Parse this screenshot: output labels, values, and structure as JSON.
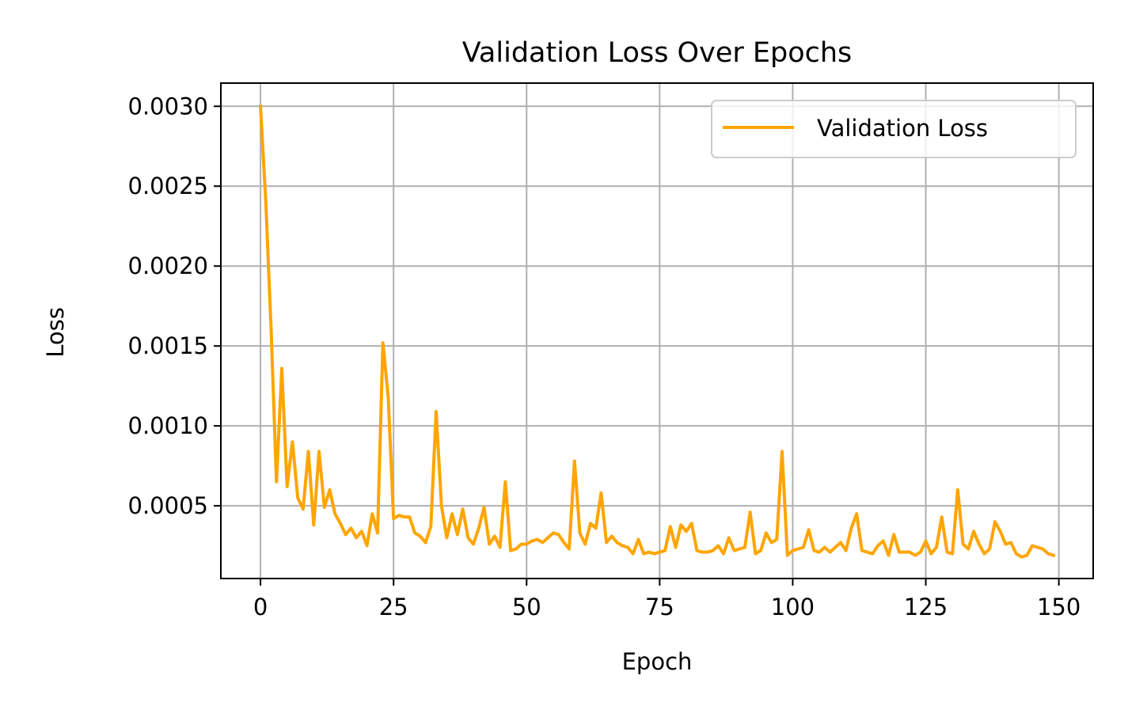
{
  "colors": {
    "series": "#FFA500",
    "grid": "#b0b0b0",
    "axis": "#000000",
    "background": "#ffffff",
    "legend_border": "#cccccc"
  },
  "chart_data": {
    "type": "line",
    "title": "Validation Loss Over Epochs",
    "xlabel": "Epoch",
    "ylabel": "Loss",
    "xlim": [
      -7.45,
      156.45
    ],
    "ylim": [
      4.5e-05,
      0.003145
    ],
    "xticks": [
      0,
      25,
      50,
      75,
      100,
      125,
      150
    ],
    "xtick_labels": [
      "0",
      "25",
      "50",
      "75",
      "100",
      "125",
      "150"
    ],
    "yticks": [
      0.0005,
      0.001,
      0.0015,
      0.002,
      0.0025,
      0.003
    ],
    "ytick_labels": [
      "0.0005",
      "0.0010",
      "0.0015",
      "0.0020",
      "0.0025",
      "0.0030"
    ],
    "grid": true,
    "legend_position": "upper right",
    "series": [
      {
        "name": "Validation Loss",
        "color": "#FFA500",
        "x": [
          0,
          1,
          2,
          3,
          4,
          5,
          6,
          7,
          8,
          9,
          10,
          11,
          12,
          13,
          14,
          15,
          16,
          17,
          18,
          19,
          20,
          21,
          22,
          23,
          24,
          25,
          26,
          27,
          28,
          29,
          30,
          31,
          32,
          33,
          34,
          35,
          36,
          37,
          38,
          39,
          40,
          41,
          42,
          43,
          44,
          45,
          46,
          47,
          48,
          49,
          50,
          51,
          52,
          53,
          54,
          55,
          56,
          57,
          58,
          59,
          60,
          61,
          62,
          63,
          64,
          65,
          66,
          67,
          68,
          69,
          70,
          71,
          72,
          73,
          74,
          75,
          76,
          77,
          78,
          79,
          80,
          81,
          82,
          83,
          84,
          85,
          86,
          87,
          88,
          89,
          90,
          91,
          92,
          93,
          94,
          95,
          96,
          97,
          98,
          99,
          100,
          101,
          102,
          103,
          104,
          105,
          106,
          107,
          108,
          109,
          110,
          111,
          112,
          113,
          114,
          115,
          116,
          117,
          118,
          119,
          120,
          121,
          122,
          123,
          124,
          125,
          126,
          127,
          128,
          129,
          130,
          131,
          132,
          133,
          134,
          135,
          136,
          137,
          138,
          139,
          140,
          141,
          142,
          143,
          144,
          145,
          146,
          147,
          148,
          149
        ],
        "values": [
          0.003,
          0.0024,
          0.0016,
          0.00065,
          0.00136,
          0.00062,
          0.0009,
          0.00055,
          0.00048,
          0.00084,
          0.00038,
          0.00084,
          0.00049,
          0.0006,
          0.00045,
          0.00039,
          0.00032,
          0.00036,
          0.0003,
          0.00034,
          0.00025,
          0.00045,
          0.00033,
          0.00152,
          0.00118,
          0.00042,
          0.00044,
          0.00043,
          0.00043,
          0.00033,
          0.00031,
          0.00027,
          0.00037,
          0.00109,
          0.0005,
          0.0003,
          0.00045,
          0.00032,
          0.00048,
          0.0003,
          0.00026,
          0.00036,
          0.00049,
          0.00026,
          0.00031,
          0.00024,
          0.00065,
          0.00022,
          0.00023,
          0.00026,
          0.00026,
          0.00028,
          0.00029,
          0.00027,
          0.0003,
          0.00033,
          0.00032,
          0.00027,
          0.00023,
          0.00078,
          0.00033,
          0.00026,
          0.00039,
          0.00036,
          0.00058,
          0.00027,
          0.00031,
          0.00027,
          0.00025,
          0.00024,
          0.0002,
          0.00029,
          0.0002,
          0.00021,
          0.0002,
          0.00021,
          0.00022,
          0.00037,
          0.00024,
          0.00038,
          0.00034,
          0.00039,
          0.00022,
          0.00021,
          0.00021,
          0.00022,
          0.00025,
          0.0002,
          0.0003,
          0.00022,
          0.00023,
          0.00024,
          0.00046,
          0.0002,
          0.00022,
          0.00033,
          0.00027,
          0.00029,
          0.00084,
          0.00019,
          0.00022,
          0.00023,
          0.00024,
          0.00035,
          0.00022,
          0.00021,
          0.00024,
          0.00021,
          0.00024,
          0.00027,
          0.00022,
          0.00036,
          0.00045,
          0.00022,
          0.00021,
          0.0002,
          0.00025,
          0.00028,
          0.00019,
          0.00032,
          0.00021,
          0.00021,
          0.00021,
          0.00019,
          0.00021,
          0.00028,
          0.0002,
          0.00024,
          0.00043,
          0.00021,
          0.0002,
          0.0006,
          0.00026,
          0.00023,
          0.00034,
          0.00026,
          0.0002,
          0.00023,
          0.0004,
          0.00034,
          0.00026,
          0.00027,
          0.0002,
          0.00018,
          0.00019,
          0.00025,
          0.00024,
          0.00023,
          0.0002,
          0.00019
        ]
      }
    ]
  }
}
